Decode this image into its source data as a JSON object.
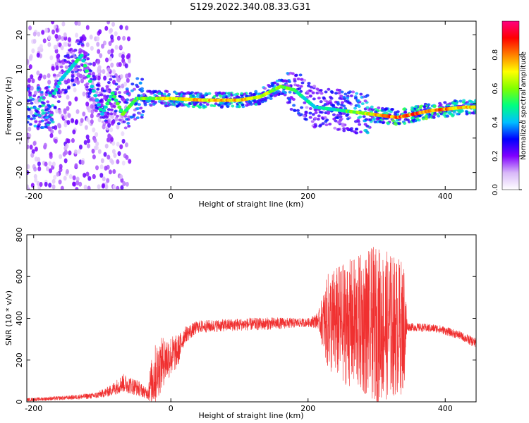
{
  "title": "S129.2022.340.08.33.G31",
  "chart_data": [
    {
      "type": "heatmap",
      "xlabel": "Height of straight line (km)",
      "ylabel": "Frequency (Hz)",
      "xlim": [
        -210,
        445
      ],
      "ylim": [
        -25,
        24
      ],
      "xticks": [
        -200,
        0,
        200,
        400
      ],
      "yticks": [
        20,
        10,
        0,
        -10,
        -20
      ],
      "colorbar": {
        "label": "Normalized spectral amplitude",
        "range": [
          0,
          1
        ],
        "ticks": [
          "0.0",
          "0.2",
          "0.4",
          "0.6",
          "0.8"
        ],
        "tick_values": [
          0.0,
          0.2,
          0.4,
          0.6,
          0.8
        ],
        "colors": [
          "#ffffff",
          "#d8b8f8",
          "#8000ff",
          "#0000ff",
          "#00c0ff",
          "#00ff80",
          "#80ff00",
          "#ffff00",
          "#ff8000",
          "#ff0000",
          "#ff0080"
        ]
      },
      "ridge": [
        {
          "x": -170,
          "y": 3,
          "a": 0.5
        },
        {
          "x": -160,
          "y": 7,
          "a": 0.4
        },
        {
          "x": -130,
          "y": 14,
          "a": 0.5
        },
        {
          "x": -115,
          "y": 5,
          "a": 0.45
        },
        {
          "x": -100,
          "y": -3,
          "a": 0.45
        },
        {
          "x": -85,
          "y": 3,
          "a": 0.5
        },
        {
          "x": -70,
          "y": -3,
          "a": 0.55
        },
        {
          "x": -50,
          "y": 1.5,
          "a": 0.55
        },
        {
          "x": 0,
          "y": 1.5,
          "a": 0.7
        },
        {
          "x": 50,
          "y": 1,
          "a": 0.75
        },
        {
          "x": 100,
          "y": 1,
          "a": 0.75
        },
        {
          "x": 130,
          "y": 2,
          "a": 0.65
        },
        {
          "x": 160,
          "y": 5,
          "a": 0.6
        },
        {
          "x": 180,
          "y": 4,
          "a": 0.5
        },
        {
          "x": 210,
          "y": -1,
          "a": 0.45
        },
        {
          "x": 250,
          "y": -2,
          "a": 0.5
        },
        {
          "x": 290,
          "y": -3,
          "a": 0.7
        },
        {
          "x": 330,
          "y": -4,
          "a": 0.85
        },
        {
          "x": 380,
          "y": -2,
          "a": 0.85
        },
        {
          "x": 430,
          "y": -1,
          "a": 0.75
        },
        {
          "x": 445,
          "y": -1,
          "a": 0.7
        }
      ]
    },
    {
      "type": "line",
      "xlabel": "Height of straight line (km)",
      "ylabel": "SNR (10 * v/v)",
      "xlim": [
        -210,
        445
      ],
      "ylim": [
        0,
        800
      ],
      "xticks": [
        -200,
        0,
        200,
        400
      ],
      "yticks": [
        0,
        200,
        400,
        600,
        800
      ],
      "color": "#f03030",
      "envelope": [
        {
          "x": -210,
          "y": 10,
          "spread": 8
        },
        {
          "x": -150,
          "y": 20,
          "spread": 10
        },
        {
          "x": -110,
          "y": 30,
          "spread": 15
        },
        {
          "x": -90,
          "y": 50,
          "spread": 25
        },
        {
          "x": -70,
          "y": 90,
          "spread": 45
        },
        {
          "x": -50,
          "y": 70,
          "spread": 40
        },
        {
          "x": -35,
          "y": 40,
          "spread": 25
        },
        {
          "x": -25,
          "y": 120,
          "spread": 150
        },
        {
          "x": -10,
          "y": 200,
          "spread": 120
        },
        {
          "x": 10,
          "y": 240,
          "spread": 80
        },
        {
          "x": 20,
          "y": 320,
          "spread": 40
        },
        {
          "x": 40,
          "y": 360,
          "spread": 30
        },
        {
          "x": 100,
          "y": 370,
          "spread": 30
        },
        {
          "x": 150,
          "y": 375,
          "spread": 30
        },
        {
          "x": 200,
          "y": 380,
          "spread": 20
        },
        {
          "x": 215,
          "y": 390,
          "spread": 40
        },
        {
          "x": 230,
          "y": 380,
          "spread": 250
        },
        {
          "x": 300,
          "y": 370,
          "spread": 380
        },
        {
          "x": 340,
          "y": 360,
          "spread": 320
        },
        {
          "x": 345,
          "y": 360,
          "spread": 20
        },
        {
          "x": 390,
          "y": 350,
          "spread": 20
        },
        {
          "x": 420,
          "y": 320,
          "spread": 20
        },
        {
          "x": 445,
          "y": 280,
          "spread": 25
        }
      ]
    }
  ]
}
